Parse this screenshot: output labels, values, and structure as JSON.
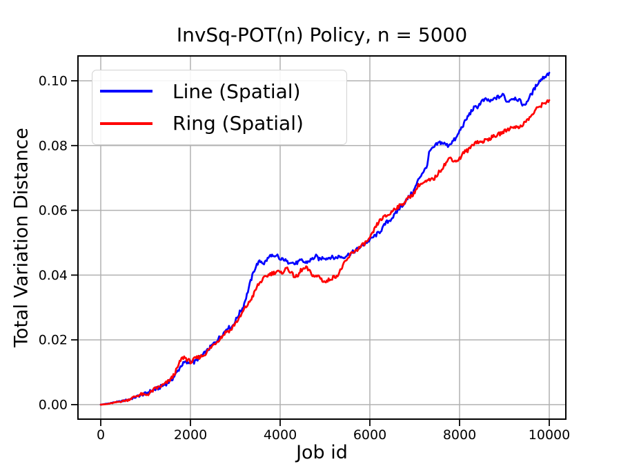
{
  "figure": {
    "title": "InvSq-POT(n) Policy, n = 5000",
    "xlabel": "Job id",
    "ylabel": "Total Variation Distance"
  },
  "legend": {
    "position": "upper left",
    "entries": [
      {
        "label": "Line (Spatial)",
        "color": "#0000ff"
      },
      {
        "label": "Ring (Spatial)",
        "color": "#ff0000"
      }
    ]
  },
  "chart_data": {
    "type": "line",
    "title": "InvSq-POT(n) Policy, n = 5000",
    "xlabel": "Job id",
    "ylabel": "Total Variation Distance",
    "xlim": [
      -500,
      10500
    ],
    "ylim": [
      -0.0045,
      0.1077
    ],
    "x_ticks": [
      0,
      2000,
      4000,
      6000,
      8000,
      10000
    ],
    "x_tick_labels": [
      "0",
      "2000",
      "4000",
      "6000",
      "8000",
      "10000"
    ],
    "y_ticks": [
      0.0,
      0.02,
      0.04,
      0.06,
      0.08,
      0.1
    ],
    "y_tick_labels": [
      "0.00",
      "0.02",
      "0.04",
      "0.06",
      "0.08",
      "0.10"
    ],
    "grid": true,
    "grid_color": "#b0b0b0",
    "legend_position": "upper left",
    "style": {
      "line_width": 2.7,
      "jitter_amplitude": 0.0006,
      "jitter_step": 20
    },
    "series": [
      {
        "name": "Line (Spatial)",
        "color": "#0000ff",
        "points": [
          [
            0,
            0.0
          ],
          [
            150,
            0.0003
          ],
          [
            300,
            0.0007
          ],
          [
            450,
            0.001
          ],
          [
            600,
            0.0015
          ],
          [
            750,
            0.0022
          ],
          [
            900,
            0.003
          ],
          [
            1000,
            0.0034
          ],
          [
            1100,
            0.0041
          ],
          [
            1200,
            0.0046
          ],
          [
            1300,
            0.0052
          ],
          [
            1400,
            0.006
          ],
          [
            1500,
            0.0068
          ],
          [
            1600,
            0.008
          ],
          [
            1700,
            0.01
          ],
          [
            1800,
            0.0122
          ],
          [
            1880,
            0.0131
          ],
          [
            1950,
            0.0127
          ],
          [
            2020,
            0.0136
          ],
          [
            2080,
            0.013
          ],
          [
            2150,
            0.014
          ],
          [
            2250,
            0.015
          ],
          [
            2350,
            0.0163
          ],
          [
            2450,
            0.0178
          ],
          [
            2550,
            0.0193
          ],
          [
            2650,
            0.0208
          ],
          [
            2750,
            0.0223
          ],
          [
            2830,
            0.024
          ],
          [
            2900,
            0.0235
          ],
          [
            3000,
            0.0258
          ],
          [
            3100,
            0.0285
          ],
          [
            3170,
            0.03
          ],
          [
            3260,
            0.034
          ],
          [
            3340,
            0.038
          ],
          [
            3420,
            0.0415
          ],
          [
            3500,
            0.0437
          ],
          [
            3570,
            0.0443
          ],
          [
            3640,
            0.0436
          ],
          [
            3720,
            0.045
          ],
          [
            3800,
            0.0463
          ],
          [
            3870,
            0.0452
          ],
          [
            3940,
            0.046
          ],
          [
            4000,
            0.0446
          ],
          [
            4080,
            0.045
          ],
          [
            4160,
            0.0439
          ],
          [
            4240,
            0.0443
          ],
          [
            4320,
            0.0434
          ],
          [
            4400,
            0.044
          ],
          [
            4480,
            0.0445
          ],
          [
            4560,
            0.0438
          ],
          [
            4640,
            0.0443
          ],
          [
            4720,
            0.045
          ],
          [
            4800,
            0.0458
          ],
          [
            4880,
            0.0448
          ],
          [
            4960,
            0.0455
          ],
          [
            5040,
            0.0452
          ],
          [
            5130,
            0.0456
          ],
          [
            5220,
            0.0452
          ],
          [
            5310,
            0.0458
          ],
          [
            5400,
            0.0455
          ],
          [
            5500,
            0.0462
          ],
          [
            5590,
            0.0468
          ],
          [
            5700,
            0.0478
          ],
          [
            5800,
            0.0488
          ],
          [
            5900,
            0.0498
          ],
          [
            6000,
            0.0509
          ],
          [
            6100,
            0.052
          ],
          [
            6210,
            0.0532
          ],
          [
            6300,
            0.0548
          ],
          [
            6360,
            0.0562
          ],
          [
            6450,
            0.057
          ],
          [
            6550,
            0.0585
          ],
          [
            6650,
            0.0605
          ],
          [
            6750,
            0.062
          ],
          [
            6850,
            0.0638
          ],
          [
            6980,
            0.066
          ],
          [
            7100,
            0.07
          ],
          [
            7200,
            0.0722
          ],
          [
            7260,
            0.073
          ],
          [
            7330,
            0.0782
          ],
          [
            7400,
            0.079
          ],
          [
            7480,
            0.0802
          ],
          [
            7560,
            0.081
          ],
          [
            7640,
            0.0807
          ],
          [
            7740,
            0.08
          ],
          [
            7840,
            0.0812
          ],
          [
            7930,
            0.0823
          ],
          [
            8000,
            0.0845
          ],
          [
            8100,
            0.0868
          ],
          [
            8200,
            0.0893
          ],
          [
            8310,
            0.0915
          ],
          [
            8400,
            0.092
          ],
          [
            8500,
            0.0937
          ],
          [
            8600,
            0.0942
          ],
          [
            8700,
            0.0936
          ],
          [
            8800,
            0.0947
          ],
          [
            8900,
            0.0951
          ],
          [
            8980,
            0.0957
          ],
          [
            9060,
            0.0934
          ],
          [
            9150,
            0.0945
          ],
          [
            9250,
            0.0947
          ],
          [
            9350,
            0.0937
          ],
          [
            9440,
            0.0922
          ],
          [
            9540,
            0.0945
          ],
          [
            9650,
            0.097
          ],
          [
            9750,
            0.0995
          ],
          [
            9850,
            0.1008
          ],
          [
            9930,
            0.1016
          ],
          [
            10000,
            0.1025
          ]
        ]
      },
      {
        "name": "Ring (Spatial)",
        "color": "#ff0000",
        "points": [
          [
            0,
            0.0
          ],
          [
            150,
            0.0002
          ],
          [
            300,
            0.0006
          ],
          [
            450,
            0.001
          ],
          [
            600,
            0.0014
          ],
          [
            750,
            0.0024
          ],
          [
            900,
            0.0032
          ],
          [
            1000,
            0.0029
          ],
          [
            1100,
            0.0036
          ],
          [
            1200,
            0.0048
          ],
          [
            1300,
            0.0054
          ],
          [
            1400,
            0.0061
          ],
          [
            1500,
            0.0071
          ],
          [
            1600,
            0.0085
          ],
          [
            1700,
            0.011
          ],
          [
            1790,
            0.014
          ],
          [
            1860,
            0.0147
          ],
          [
            1950,
            0.0137
          ],
          [
            2020,
            0.0131
          ],
          [
            2100,
            0.0142
          ],
          [
            2200,
            0.0147
          ],
          [
            2300,
            0.0153
          ],
          [
            2400,
            0.0168
          ],
          [
            2500,
            0.0183
          ],
          [
            2600,
            0.0196
          ],
          [
            2700,
            0.021
          ],
          [
            2800,
            0.0226
          ],
          [
            2900,
            0.023
          ],
          [
            3000,
            0.0252
          ],
          [
            3100,
            0.0268
          ],
          [
            3200,
            0.0295
          ],
          [
            3300,
            0.0313
          ],
          [
            3400,
            0.0338
          ],
          [
            3500,
            0.0368
          ],
          [
            3600,
            0.0385
          ],
          [
            3700,
            0.0397
          ],
          [
            3780,
            0.0404
          ],
          [
            3860,
            0.0407
          ],
          [
            3940,
            0.0413
          ],
          [
            4010,
            0.0404
          ],
          [
            4090,
            0.0414
          ],
          [
            4160,
            0.0423
          ],
          [
            4240,
            0.0407
          ],
          [
            4310,
            0.0397
          ],
          [
            4390,
            0.0394
          ],
          [
            4460,
            0.0415
          ],
          [
            4590,
            0.0422
          ],
          [
            4700,
            0.0404
          ],
          [
            4780,
            0.0394
          ],
          [
            4860,
            0.0398
          ],
          [
            4940,
            0.0384
          ],
          [
            5020,
            0.0378
          ],
          [
            5110,
            0.0388
          ],
          [
            5200,
            0.0394
          ],
          [
            5300,
            0.0402
          ],
          [
            5400,
            0.043
          ],
          [
            5500,
            0.0448
          ],
          [
            5590,
            0.0468
          ],
          [
            5700,
            0.0477
          ],
          [
            5800,
            0.0488
          ],
          [
            5900,
            0.05
          ],
          [
            6000,
            0.0512
          ],
          [
            6100,
            0.054
          ],
          [
            6170,
            0.0558
          ],
          [
            6250,
            0.0573
          ],
          [
            6360,
            0.0582
          ],
          [
            6450,
            0.0589
          ],
          [
            6550,
            0.0606
          ],
          [
            6650,
            0.0612
          ],
          [
            6750,
            0.0622
          ],
          [
            6850,
            0.0637
          ],
          [
            6980,
            0.0652
          ],
          [
            7090,
            0.0679
          ],
          [
            7200,
            0.0684
          ],
          [
            7300,
            0.0691
          ],
          [
            7430,
            0.0697
          ],
          [
            7550,
            0.0719
          ],
          [
            7650,
            0.0738
          ],
          [
            7790,
            0.0763
          ],
          [
            7900,
            0.0751
          ],
          [
            8000,
            0.0759
          ],
          [
            8100,
            0.078
          ],
          [
            8200,
            0.0786
          ],
          [
            8280,
            0.0801
          ],
          [
            8360,
            0.0812
          ],
          [
            8470,
            0.081
          ],
          [
            8560,
            0.0815
          ],
          [
            8700,
            0.0824
          ],
          [
            8870,
            0.0834
          ],
          [
            9000,
            0.0844
          ],
          [
            9130,
            0.0854
          ],
          [
            9220,
            0.086
          ],
          [
            9300,
            0.0854
          ],
          [
            9440,
            0.0869
          ],
          [
            9550,
            0.0884
          ],
          [
            9650,
            0.09
          ],
          [
            9745,
            0.0918
          ],
          [
            9850,
            0.0927
          ],
          [
            9930,
            0.0935
          ],
          [
            10000,
            0.094
          ]
        ]
      }
    ]
  }
}
